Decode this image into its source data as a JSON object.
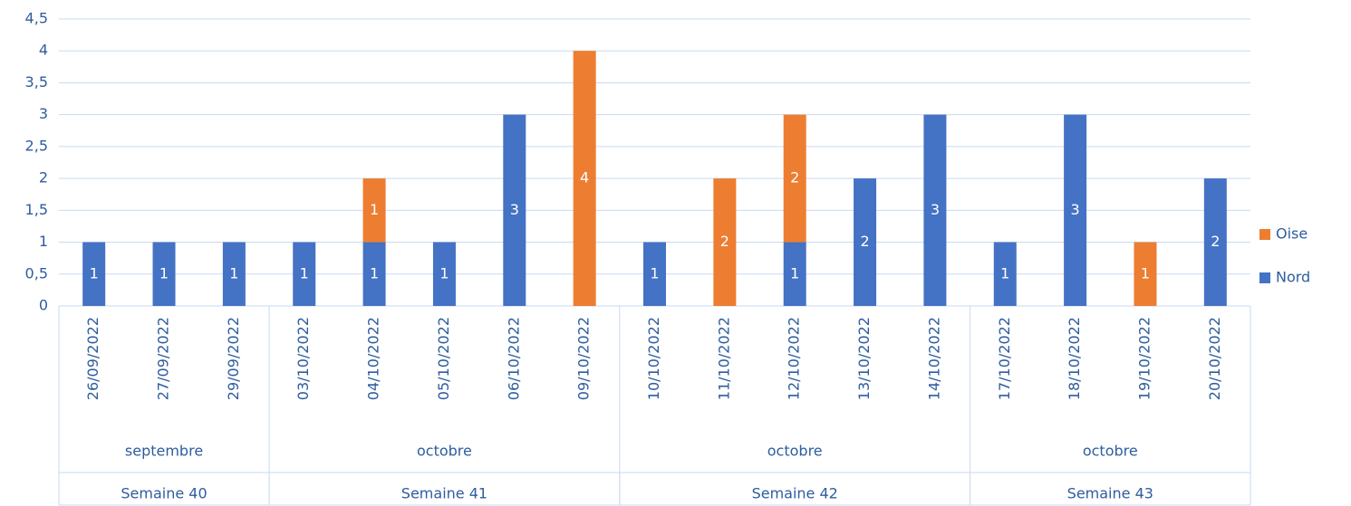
{
  "chart_data": {
    "type": "stacked_bar",
    "categories": [
      "26/09/2022",
      "27/09/2022",
      "29/09/2022",
      "03/10/2022",
      "04/10/2022",
      "05/10/2022",
      "06/10/2022",
      "09/10/2022",
      "10/10/2022",
      "11/10/2022",
      "12/10/2022",
      "13/10/2022",
      "14/10/2022",
      "17/10/2022",
      "18/10/2022",
      "19/10/2022",
      "20/10/2022"
    ],
    "months": [
      "septembre",
      null,
      null,
      "octobre",
      null,
      null,
      null,
      null,
      "octobre",
      null,
      null,
      null,
      null,
      "octobre",
      null,
      null,
      null
    ],
    "weeks": [
      "Semaine 40",
      null,
      null,
      "Semaine 41",
      null,
      null,
      null,
      null,
      "Semaine 42",
      null,
      null,
      null,
      null,
      "Semaine 43",
      null,
      null,
      null
    ],
    "series": [
      {
        "name": "Nord",
        "color": "#4472c4",
        "values": [
          1,
          1,
          1,
          1,
          1,
          1,
          3,
          null,
          1,
          null,
          1,
          2,
          3,
          1,
          3,
          null,
          2
        ]
      },
      {
        "name": "Oise",
        "color": "#ed7d31",
        "values": [
          null,
          null,
          null,
          null,
          1,
          null,
          null,
          4,
          null,
          2,
          2,
          null,
          null,
          null,
          null,
          1,
          null
        ]
      }
    ],
    "ylim": [
      0,
      4.5
    ],
    "yticks": [
      0,
      {
        "value": 0.5,
        "label": "0,5"
      },
      1,
      {
        "value": 1.5,
        "label": "1,5"
      },
      2,
      {
        "value": 2.5,
        "label": "2,5"
      },
      3,
      {
        "value": 3.5,
        "label": "3,5"
      },
      4,
      {
        "value": 4.5,
        "label": "4,5"
      }
    ],
    "grid": true,
    "legend": "right"
  }
}
